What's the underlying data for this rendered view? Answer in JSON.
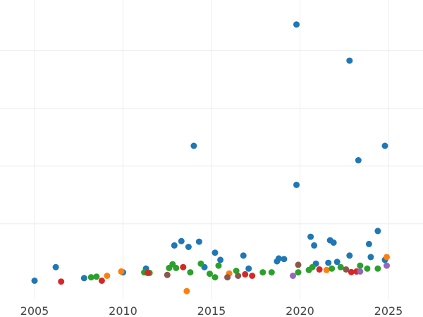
{
  "chart_data": {
    "type": "scatter",
    "title": "",
    "xlabel": "",
    "ylabel": "",
    "xlim": [
      2005.0,
      2026.0
    ],
    "ylim": [
      0,
      10
    ],
    "x_ticks": [
      "2005",
      "2010",
      "2015",
      "2020",
      "2025"
    ],
    "x_tick_values": [
      2005,
      2010,
      2015,
      2020,
      2025
    ],
    "y_gridlines": [
      2.3,
      4.3,
      6.3,
      8.3
    ],
    "y_tick_labels_visible": false,
    "legend": "none",
    "grid": true,
    "colors": {
      "blue": "#1f77b4",
      "orange": "#ff7f0e",
      "green": "#2ca02c",
      "red": "#d62728",
      "purple": "#9467bd",
      "brown": "#8c564b"
    },
    "series": [
      {
        "color": "blue",
        "points": [
          [
            2005.0,
            0.33
          ],
          [
            2006.2,
            0.8
          ],
          [
            2007.8,
            0.42
          ],
          [
            2010.0,
            0.62
          ],
          [
            2011.3,
            0.75
          ],
          [
            2012.9,
            1.55
          ],
          [
            2013.3,
            1.7
          ],
          [
            2013.7,
            1.5
          ],
          [
            2014.0,
            5.0
          ],
          [
            2014.3,
            1.68
          ],
          [
            2014.6,
            0.8
          ],
          [
            2015.2,
            1.3
          ],
          [
            2015.5,
            1.05
          ],
          [
            2016.8,
            1.2
          ],
          [
            2017.1,
            0.75
          ],
          [
            2018.7,
            1.0
          ],
          [
            2018.8,
            1.1
          ],
          [
            2019.1,
            1.08
          ],
          [
            2019.8,
            9.2
          ],
          [
            2019.8,
            3.65
          ],
          [
            2020.6,
            1.85
          ],
          [
            2020.8,
            1.55
          ],
          [
            2020.9,
            0.92
          ],
          [
            2021.6,
            0.95
          ],
          [
            2021.7,
            1.73
          ],
          [
            2021.9,
            1.65
          ],
          [
            2022.1,
            0.98
          ],
          [
            2022.8,
            7.95
          ],
          [
            2022.8,
            1.2
          ],
          [
            2023.3,
            4.5
          ],
          [
            2023.9,
            1.6
          ],
          [
            2024.0,
            1.15
          ],
          [
            2024.4,
            2.05
          ],
          [
            2024.8,
            5.0
          ],
          [
            2024.8,
            1.05
          ]
        ]
      },
      {
        "color": "orange",
        "points": [
          [
            2009.1,
            0.5
          ],
          [
            2009.9,
            0.65
          ],
          [
            2013.6,
            -0.03
          ],
          [
            2016.0,
            0.58
          ],
          [
            2021.5,
            0.7
          ],
          [
            2024.9,
            1.15
          ]
        ]
      },
      {
        "color": "green",
        "points": [
          [
            2008.2,
            0.45
          ],
          [
            2008.5,
            0.47
          ],
          [
            2011.2,
            0.62
          ],
          [
            2011.5,
            0.6
          ],
          [
            2012.6,
            0.77
          ],
          [
            2012.8,
            0.9
          ],
          [
            2013.0,
            0.77
          ],
          [
            2013.8,
            0.62
          ],
          [
            2014.4,
            0.92
          ],
          [
            2014.9,
            0.57
          ],
          [
            2015.2,
            0.45
          ],
          [
            2015.4,
            0.85
          ],
          [
            2016.4,
            0.67
          ],
          [
            2017.9,
            0.62
          ],
          [
            2018.4,
            0.62
          ],
          [
            2019.9,
            0.62
          ],
          [
            2020.5,
            0.7
          ],
          [
            2020.7,
            0.8
          ],
          [
            2021.8,
            0.75
          ],
          [
            2022.3,
            0.8
          ],
          [
            2023.4,
            0.85
          ],
          [
            2023.8,
            0.75
          ],
          [
            2024.4,
            0.75
          ]
        ]
      },
      {
        "color": "red",
        "points": [
          [
            2006.5,
            0.3
          ],
          [
            2008.8,
            0.33
          ],
          [
            2011.4,
            0.6
          ],
          [
            2013.4,
            0.8
          ],
          [
            2016.9,
            0.55
          ],
          [
            2017.3,
            0.5
          ],
          [
            2021.1,
            0.72
          ],
          [
            2022.9,
            0.63
          ],
          [
            2023.2,
            0.65
          ]
        ]
      },
      {
        "color": "purple",
        "points": [
          [
            2019.6,
            0.5
          ],
          [
            2023.4,
            0.65
          ],
          [
            2024.9,
            0.85
          ]
        ]
      },
      {
        "color": "brown",
        "points": [
          [
            2012.5,
            0.53
          ],
          [
            2015.9,
            0.45
          ],
          [
            2016.5,
            0.5
          ],
          [
            2019.9,
            0.88
          ],
          [
            2022.6,
            0.72
          ]
        ]
      }
    ]
  }
}
